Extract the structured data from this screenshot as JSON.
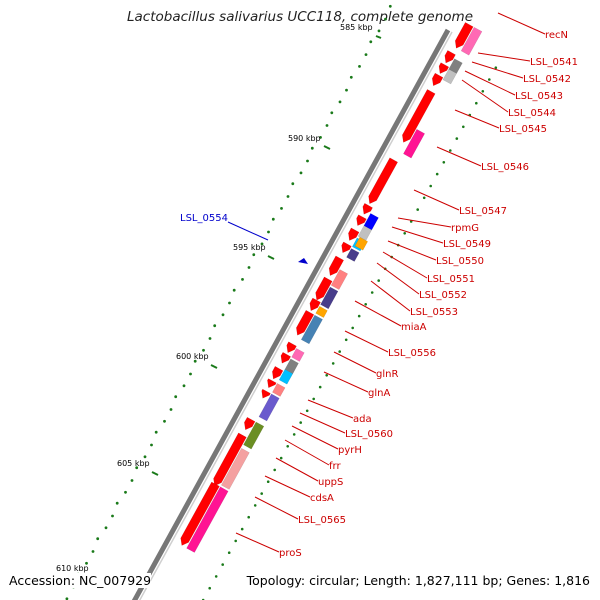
{
  "title": "Lactobacillus salivarius UCC118, complete genome",
  "accession": "Accession: NC_007929",
  "topology": "Topology: circular; Length: 1,827,111 bp; Genes: 1,816",
  "highlight_color": "#0000cc",
  "label_color": "#cc0000",
  "kbp_ticks": [
    "585 kbp",
    "590 kbp",
    "595 kbp",
    "600 kbp",
    "605 kbp",
    "610 kbp"
  ],
  "genes": [
    {
      "label": "recN",
      "highlight": false
    },
    {
      "label": "LSL_0541",
      "highlight": false
    },
    {
      "label": "LSL_0542",
      "highlight": false
    },
    {
      "label": "LSL_0543",
      "highlight": false
    },
    {
      "label": "LSL_0544",
      "highlight": false
    },
    {
      "label": "LSL_0545",
      "highlight": false
    },
    {
      "label": "LSL_0546",
      "highlight": false
    },
    {
      "label": "LSL_0547",
      "highlight": false
    },
    {
      "label": "rpmG",
      "highlight": false
    },
    {
      "label": "LSL_0549",
      "highlight": false
    },
    {
      "label": "LSL_0550",
      "highlight": false
    },
    {
      "label": "LSL_0551",
      "highlight": false
    },
    {
      "label": "LSL_0552",
      "highlight": false
    },
    {
      "label": "LSL_0553",
      "highlight": false
    },
    {
      "label": "miaA",
      "highlight": false
    },
    {
      "label": "LSL_0556",
      "highlight": false
    },
    {
      "label": "glnR",
      "highlight": false
    },
    {
      "label": "glnA",
      "highlight": false
    },
    {
      "label": "ada",
      "highlight": false
    },
    {
      "label": "LSL_0560",
      "highlight": false
    },
    {
      "label": "pyrH",
      "highlight": false
    },
    {
      "label": "frr",
      "highlight": false
    },
    {
      "label": "uppS",
      "highlight": false
    },
    {
      "label": "cdsA",
      "highlight": false
    },
    {
      "label": "LSL_0565",
      "highlight": false
    },
    {
      "label": "proS",
      "highlight": false
    },
    {
      "label": "LSL_0554",
      "highlight": true
    }
  ],
  "cog_colors": [
    "#ff69b4",
    "#808080",
    "#c0c0c0",
    "#ff1493",
    "#0000ff",
    "#00bfff",
    "#ffa500",
    "#483d8b",
    "#ff8080",
    "#6a5acd",
    "#4682b4",
    "#6b8e23",
    "#f4a0a0",
    "#9370db"
  ]
}
